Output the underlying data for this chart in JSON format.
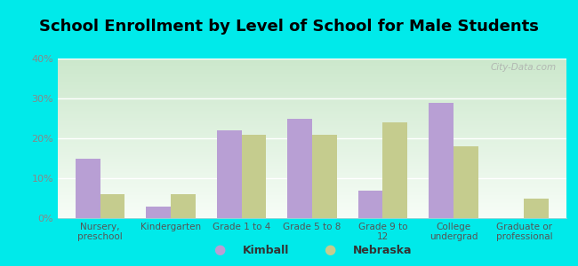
{
  "title": "School Enrollment by Level of School for Male Students",
  "categories": [
    "Nursery,\npreschool",
    "Kindergarten",
    "Grade 1 to 4",
    "Grade 5 to 8",
    "Grade 9 to\n12",
    "College\nundergrad",
    "Graduate or\nprofessional"
  ],
  "kimball": [
    15,
    3,
    22,
    25,
    7,
    29,
    0
  ],
  "nebraska": [
    6,
    6,
    21,
    21,
    24,
    18,
    5
  ],
  "kimball_color": "#b89fd4",
  "nebraska_color": "#c5cc8e",
  "ylim": [
    0,
    40
  ],
  "yticks": [
    0,
    10,
    20,
    30,
    40
  ],
  "ytick_labels": [
    "0%",
    "10%",
    "20%",
    "30%",
    "40%"
  ],
  "background_color": "#00eaea",
  "title_fontsize": 13,
  "legend_labels": [
    "Kimball",
    "Nebraska"
  ],
  "bar_width": 0.35,
  "watermark": "City-Data.com",
  "grad_top": "#f7fdf7",
  "grad_bottom": "#cce8cc",
  "tick_color": "#888888",
  "label_color": "#555555"
}
